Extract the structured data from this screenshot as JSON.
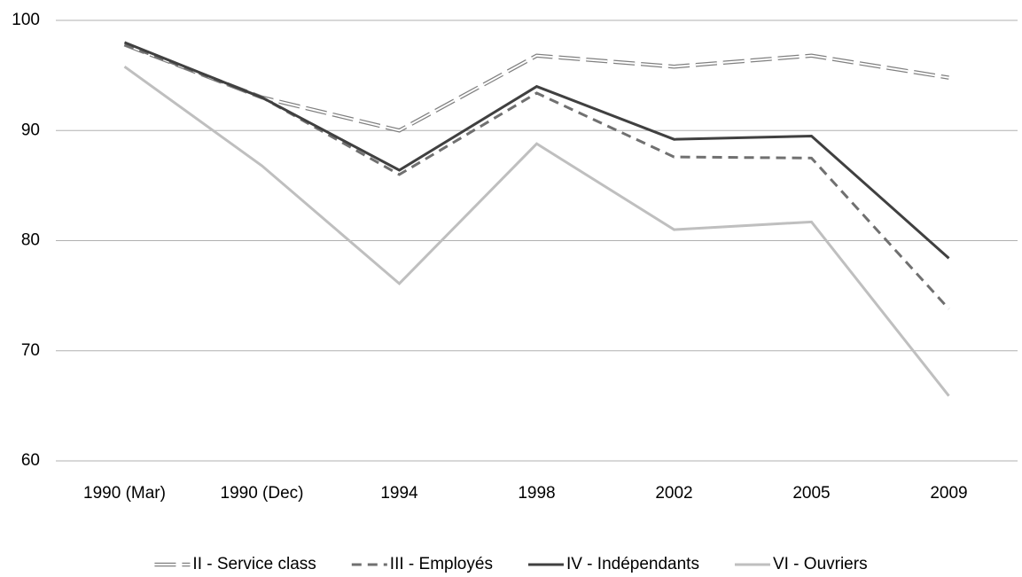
{
  "chart_data": {
    "type": "line",
    "categories": [
      "1990 (Mar)",
      "1990 (Dec)",
      "1994",
      "1998",
      "2002",
      "2005",
      "2009"
    ],
    "series": [
      {
        "name": "II - Service class",
        "color": "#808080",
        "line_style": "double",
        "values": [
          97.8,
          93,
          90,
          96.8,
          95.8,
          96.8,
          94.8
        ]
      },
      {
        "name": "III - Employés",
        "color": "#707070",
        "line_style": "dashed",
        "values": [
          97.8,
          93,
          86,
          93.4,
          87.6,
          87.5,
          73.8
        ]
      },
      {
        "name": "IV - Indépendants",
        "color": "#404040",
        "line_style": "solid",
        "values": [
          98,
          93,
          86.4,
          94,
          89.2,
          89.5,
          78.4
        ]
      },
      {
        "name": "VI - Ouvriers",
        "color": "#bfbfbf",
        "line_style": "solid",
        "values": [
          95.8,
          86.8,
          76.1,
          88.8,
          81,
          81.7,
          65.9
        ]
      }
    ],
    "ylim": [
      60,
      100
    ],
    "yticks": [
      60,
      70,
      80,
      90,
      100
    ],
    "grid": true,
    "legend": "bottom"
  }
}
